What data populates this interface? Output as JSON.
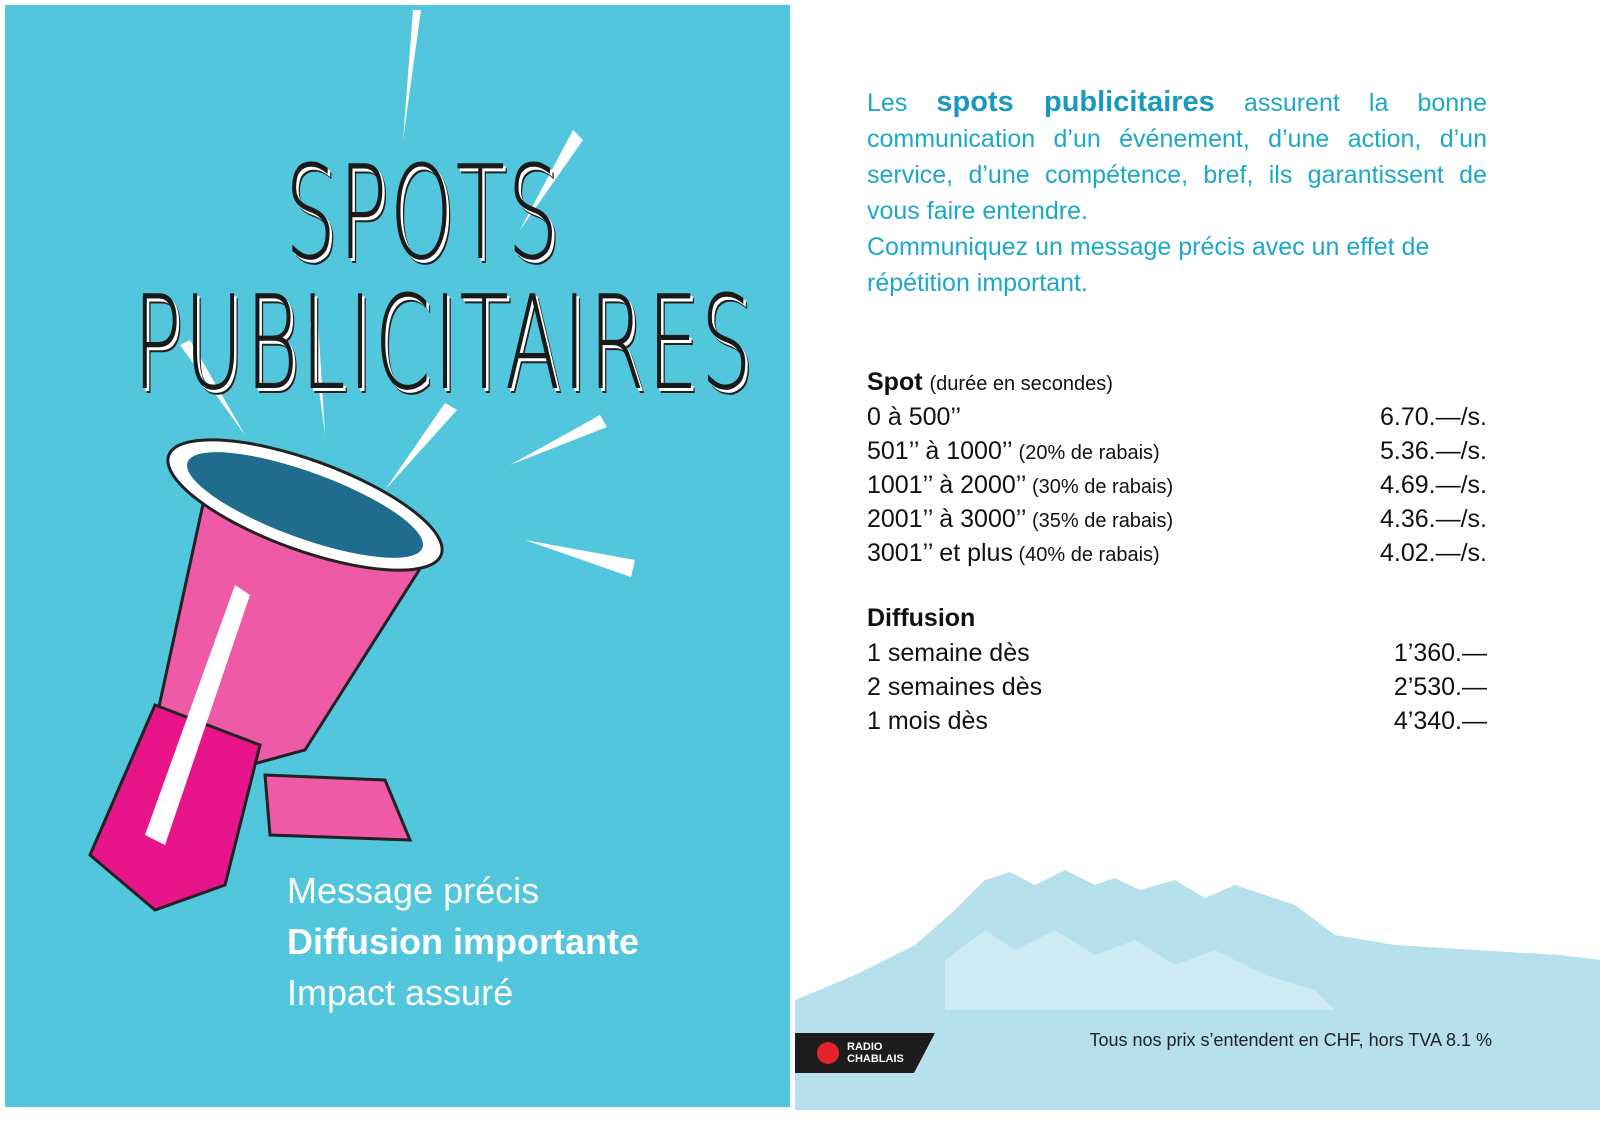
{
  "left": {
    "title_line1": "SPOTS",
    "title_line2": "PUBLICITAIRES",
    "slogans": [
      "Message précis",
      "Diffusion importante",
      "Impact assuré"
    ],
    "background_color": "#52c6dc",
    "megaphone_color": "#e8449a"
  },
  "right": {
    "intro_pre": "Les ",
    "intro_bold": "spots publicitaires",
    "intro_post": " assurent la bonne communication d’un événement, d’une action, d’un service, d’une compétence, bref, ils garantissent de vous faire entendre.",
    "intro_line2": "Communiquez un message précis avec un effet de répétition important.",
    "spot": {
      "heading": "Spot",
      "heading_note": "(durée en secondes)",
      "rows": [
        {
          "label": "0 à 500’’",
          "note": "",
          "price": "6.70.—/s."
        },
        {
          "label": "501’’ à 1000’’ ",
          "note": " (20% de rabais)",
          "price": "5.36.—/s."
        },
        {
          "label": "1001’’ à 2000’’",
          "note": " (30% de rabais)",
          "price": "4.69.—/s."
        },
        {
          "label": "2001’’ à 3000’’",
          "note": " (35% de rabais)",
          "price": "4.36.—/s."
        },
        {
          "label": "3001’’ et plus",
          "note": " (40% de rabais)",
          "price": "4.02.—/s."
        }
      ]
    },
    "diffusion": {
      "heading": "Diffusion",
      "rows": [
        {
          "label": "1 semaine dès",
          "price": "1’360.—"
        },
        {
          "label": "2 semaines dès",
          "price": "2’530.—"
        },
        {
          "label": "1 mois dès",
          "price": "4’340.—"
        }
      ]
    },
    "footnote": "Tous nos prix s’entendent en CHF, hors TVA 8.1 %",
    "logo": {
      "line1": "RADIO",
      "line2": "CHABLAIS",
      "dot_color": "#e5212b"
    }
  }
}
